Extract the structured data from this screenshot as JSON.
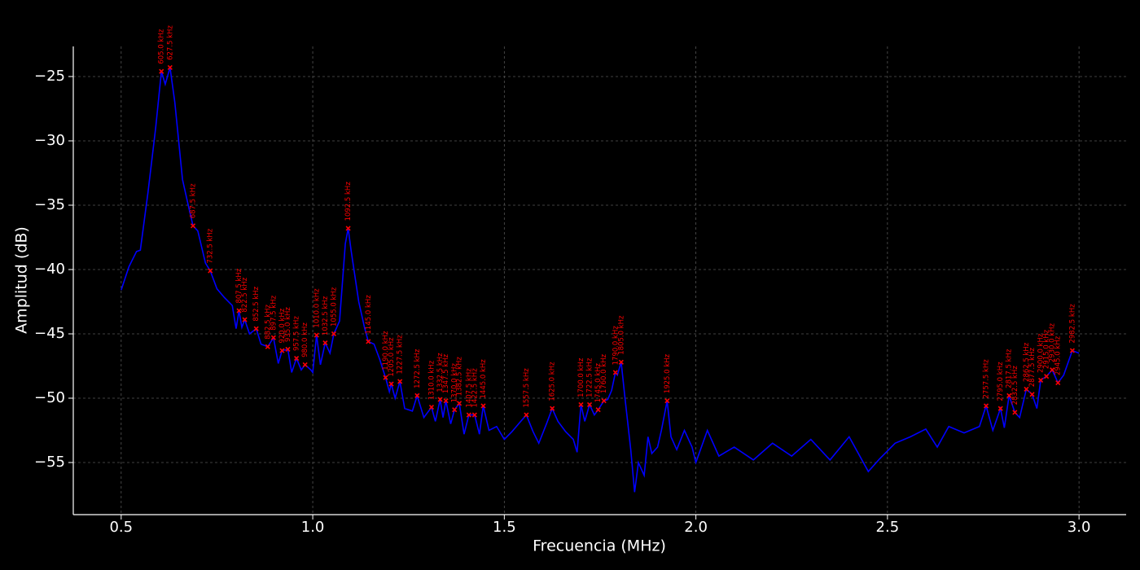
{
  "chart_data": {
    "type": "line",
    "xlabel": "Frecuencia (MHz)",
    "ylabel": "Amplitud (dB)",
    "xlim": [
      0.375,
      3.123
    ],
    "ylim": [
      -59.05,
      -22.66
    ],
    "xticks": [
      0.5,
      {
        "value": 1,
        "label": "1.0"
      },
      1.5,
      {
        "value": 2,
        "label": "2.0"
      },
      2.5,
      {
        "value": 3,
        "label": "3.0"
      }
    ],
    "yticks": [
      {
        "value": -25,
        "label": "−25"
      },
      {
        "value": -30,
        "label": "−30"
      },
      {
        "value": -35,
        "label": "−35"
      },
      {
        "value": -40,
        "label": "−40"
      },
      {
        "value": -45,
        "label": "−45"
      },
      {
        "value": -50,
        "label": "−50"
      },
      {
        "value": -55,
        "label": "−55"
      }
    ],
    "grid": true,
    "line": {
      "color": "#0000ff",
      "x": [
        0.5,
        0.52,
        0.54,
        0.55,
        0.57,
        0.59,
        0.605,
        0.615,
        0.6275,
        0.64,
        0.66,
        0.675,
        0.6875,
        0.7,
        0.72,
        0.7325,
        0.75,
        0.77,
        0.79,
        0.8,
        0.8075,
        0.815,
        0.8225,
        0.835,
        0.8525,
        0.865,
        0.8825,
        0.8975,
        0.91,
        0.92,
        0.935,
        0.945,
        0.9575,
        0.97,
        0.98,
        0.995,
        1.0,
        1.01,
        1.02,
        1.0325,
        1.045,
        1.055,
        1.07,
        1.085,
        1.0925,
        1.1,
        1.12,
        1.135,
        1.145,
        1.16,
        1.175,
        1.19,
        1.2,
        1.205,
        1.215,
        1.2275,
        1.24,
        1.26,
        1.2725,
        1.29,
        1.31,
        1.32,
        1.3325,
        1.34,
        1.3475,
        1.36,
        1.37,
        1.3825,
        1.395,
        1.4075,
        1.4225,
        1.435,
        1.445,
        1.46,
        1.48,
        1.5,
        1.52,
        1.54,
        1.5575,
        1.575,
        1.59,
        1.61,
        1.625,
        1.64,
        1.66,
        1.68,
        1.69,
        1.7,
        1.71,
        1.7225,
        1.735,
        1.745,
        1.76,
        1.77,
        1.78,
        1.79,
        1.795,
        1.805,
        1.815,
        1.83,
        1.84,
        1.85,
        1.865,
        1.875,
        1.885,
        1.9,
        1.91,
        1.925,
        1.935,
        1.95,
        1.97,
        1.99,
        2.0,
        2.03,
        2.06,
        2.1,
        2.15,
        2.2,
        2.25,
        2.3,
        2.35,
        2.4,
        2.45,
        2.48,
        2.52,
        2.56,
        2.6,
        2.63,
        2.66,
        2.7,
        2.74,
        2.7575,
        2.775,
        2.795,
        2.805,
        2.8175,
        2.8325,
        2.845,
        2.8625,
        2.8775,
        2.89,
        2.9,
        2.915,
        2.93,
        2.945,
        2.96,
        2.9825,
        3.0
      ],
      "values": [
        -41.6,
        -39.8,
        -38.6,
        -38.5,
        -34,
        -29,
        -24.6,
        -25.6,
        -24.3,
        -27,
        -33,
        -35,
        -36.6,
        -37,
        -39.5,
        -40.1,
        -41.5,
        -42.2,
        -42.8,
        -44.6,
        -43.2,
        -44.5,
        -43.9,
        -45,
        -44.6,
        -45.8,
        -46.0,
        -45.3,
        -47.3,
        -46.3,
        -46.2,
        -48,
        -46.9,
        -47.8,
        -47.4,
        -47.8,
        -48,
        -45.1,
        -47.4,
        -45.7,
        -46.5,
        -45.0,
        -44,
        -38,
        -36.8,
        -38.5,
        -42.5,
        -44.5,
        -45.6,
        -45.8,
        -47,
        -48.4,
        -49.5,
        -48.9,
        -50,
        -48.7,
        -50.8,
        -51,
        -49.8,
        -51.5,
        -50.7,
        -51.8,
        -50.1,
        -51.5,
        -50.2,
        -52,
        -50.9,
        -50.4,
        -52.8,
        -51.3,
        -51.3,
        -52.8,
        -50.6,
        -52.5,
        -52.2,
        -53.2,
        -52.6,
        -51.9,
        -51.3,
        -52.6,
        -53.5,
        -52,
        -50.8,
        -51.8,
        -52.6,
        -53.2,
        -54.2,
        -50.5,
        -51.8,
        -50.5,
        -51.3,
        -50.9,
        -50.2,
        -50.1,
        -49.4,
        -48.0,
        -48.2,
        -47.2,
        -50,
        -54,
        -57.3,
        -55,
        -56,
        -53,
        -54.3,
        -53.8,
        -52.5,
        -50.2,
        -53,
        -54,
        -52.5,
        -53.8,
        -55,
        -52.5,
        -54.5,
        -53.8,
        -54.8,
        -53.5,
        -54.5,
        -53.2,
        -54.8,
        -53,
        -55.7,
        -54.7,
        -53.5,
        -53,
        -52.4,
        -53.8,
        -52.2,
        -52.7,
        -52.2,
        -50.6,
        -52.5,
        -50.8,
        -52.3,
        -49.8,
        -51.1,
        -51.5,
        -49.3,
        -49.7,
        -50.8,
        -48.6,
        -48.3,
        -47.8,
        -48.8,
        -48.2,
        -46.3,
        -46.5
      ]
    },
    "peaks": {
      "color": "#ff0000",
      "x": [
        0.605,
        0.6275,
        0.6875,
        0.7325,
        0.8075,
        0.8225,
        0.8525,
        0.8825,
        0.8975,
        0.92,
        0.935,
        0.9575,
        0.98,
        1.01,
        1.0325,
        1.055,
        1.0925,
        1.145,
        1.19,
        1.205,
        1.2275,
        1.2725,
        1.31,
        1.3325,
        1.3475,
        1.37,
        1.3825,
        1.4075,
        1.4225,
        1.445,
        1.5575,
        1.625,
        1.7,
        1.7225,
        1.745,
        1.76,
        1.79,
        1.805,
        1.925,
        2.7575,
        2.795,
        2.8175,
        2.8325,
        2.8625,
        2.8775,
        2.9,
        2.915,
        2.93,
        2.945,
        2.9825
      ],
      "values": [
        -24.6,
        -24.3,
        -36.6,
        -40.1,
        -43.2,
        -43.9,
        -44.6,
        -46.0,
        -45.3,
        -46.3,
        -46.2,
        -46.9,
        -47.4,
        -45.1,
        -45.7,
        -45.0,
        -36.8,
        -45.6,
        -48.4,
        -48.9,
        -48.7,
        -49.8,
        -50.7,
        -50.1,
        -50.2,
        -50.9,
        -50.4,
        -51.3,
        -51.3,
        -50.6,
        -51.3,
        -50.8,
        -50.5,
        -50.5,
        -50.9,
        -50.2,
        -48.0,
        -47.2,
        -50.2,
        -50.6,
        -50.8,
        -49.8,
        -51.1,
        -49.3,
        -49.7,
        -48.6,
        -48.3,
        -47.8,
        -48.8,
        -46.3
      ],
      "labels": [
        "605.0 kHz",
        "627.5 kHz",
        "687.5 kHz",
        "732.5 kHz",
        "807.5 kHz",
        "822.5 kHz",
        "852.5 kHz",
        "882.5 kHz",
        "897.5 kHz",
        "920.0 kHz",
        "935.0 kHz",
        "957.5 kHz",
        "980.0 kHz",
        "1010.0 kHz",
        "1032.5 kHz",
        "1055.0 kHz",
        "1092.5 kHz",
        "1145.0 kHz",
        "1190.0 kHz",
        "1205.0 kHz",
        "1227.5 kHz",
        "1272.5 kHz",
        "1310.0 kHz",
        "1332.5 kHz",
        "1347.5 kHz",
        "1370.0 kHz",
        "1382.5 kHz",
        "1407.5 kHz",
        "1422.5 kHz",
        "1445.0 kHz",
        "1557.5 kHz",
        "1625.0 kHz",
        "1700.0 kHz",
        "1722.5 kHz",
        "1745.0 kHz",
        "1760.0 kHz",
        "1790.0 kHz",
        "1805.0 kHz",
        "1925.0 kHz",
        "2757.5 kHz",
        "2795.0 kHz",
        "2817.5 kHz",
        "2832.5 kHz",
        "2862.5 kHz",
        "2877.5 kHz",
        "2900.0 kHz",
        "2915.0 kHz",
        "2930.0 kHz",
        "2945.0 kHz",
        "2982.5 kHz"
      ]
    }
  }
}
